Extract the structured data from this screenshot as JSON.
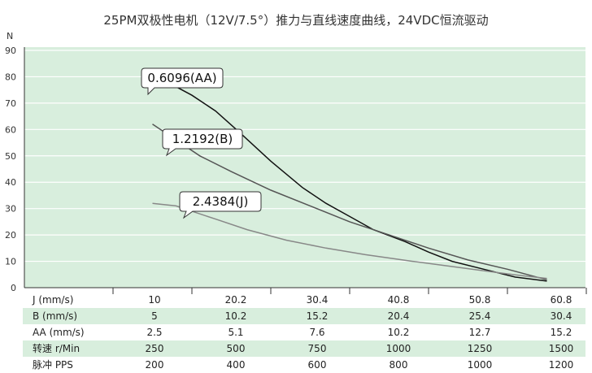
{
  "chart_data": {
    "type": "line",
    "title": "25PM双极性电机（12V/7.5°）推力与直线速度曲线，24VDC恒流驱动",
    "ylabel": "N",
    "ylim": [
      0,
      90
    ],
    "yticks": [
      0,
      10,
      20,
      30,
      40,
      50,
      60,
      70,
      80,
      90
    ],
    "x_columns": 6,
    "grid": "horizontal",
    "background": "#d8eedd",
    "series": [
      {
        "name": "0.6096(AA)",
        "color": "#111111",
        "points": [
          [
            0.5,
            81
          ],
          [
            1.0,
            73
          ],
          [
            1.3,
            67
          ],
          [
            1.6,
            59
          ],
          [
            2.0,
            48
          ],
          [
            2.4,
            38
          ],
          [
            2.7,
            32
          ],
          [
            3.0,
            27
          ],
          [
            3.3,
            22
          ],
          [
            3.7,
            17.5
          ],
          [
            4.0,
            13.5
          ],
          [
            4.3,
            10
          ],
          [
            4.7,
            7
          ],
          [
            5.1,
            4
          ],
          [
            5.5,
            2.5
          ]
        ],
        "label_at": [
          1.0,
          73
        ]
      },
      {
        "name": "1.2192(B)",
        "color": "#555555",
        "points": [
          [
            0.5,
            62
          ],
          [
            0.8,
            56
          ],
          [
            1.1,
            50
          ],
          [
            1.5,
            44
          ],
          [
            2.0,
            37
          ],
          [
            2.5,
            31
          ],
          [
            3.0,
            25
          ],
          [
            3.5,
            20
          ],
          [
            4.0,
            15
          ],
          [
            4.5,
            10.5
          ],
          [
            5.0,
            7
          ],
          [
            5.5,
            3
          ]
        ],
        "label_at": [
          1.6,
          49
        ]
      },
      {
        "name": "2.4384(J)",
        "color": "#888888",
        "points": [
          [
            0.5,
            32
          ],
          [
            0.8,
            31
          ],
          [
            1.0,
            29
          ],
          [
            1.3,
            26
          ],
          [
            1.7,
            22
          ],
          [
            2.2,
            18
          ],
          [
            2.7,
            15
          ],
          [
            3.2,
            12.5
          ],
          [
            3.8,
            10
          ],
          [
            4.3,
            8
          ],
          [
            4.8,
            6
          ],
          [
            5.2,
            4.5
          ],
          [
            5.5,
            3.5
          ]
        ],
        "label_at": [
          1.3,
          26
        ]
      }
    ],
    "table": {
      "rows": [
        {
          "label": "J (mm/s)",
          "values": [
            "10",
            "20.2",
            "30.4",
            "40.8",
            "50.8",
            "60.8"
          ],
          "shaded": false
        },
        {
          "label": "B (mm/s)",
          "values": [
            "5",
            "10.2",
            "15.2",
            "20.4",
            "25.4",
            "30.4"
          ],
          "shaded": true
        },
        {
          "label": "AA (mm/s)",
          "values": [
            "2.5",
            "5.1",
            "7.6",
            "10.2",
            "12.7",
            "15.2"
          ],
          "shaded": false
        },
        {
          "label": "转速 r/Min",
          "values": [
            "250",
            "500",
            "750",
            "1000",
            "1250",
            "1500"
          ],
          "shaded": true
        },
        {
          "label": "脉冲 PPS",
          "values": [
            "200",
            "400",
            "600",
            "800",
            "1000",
            "1200"
          ],
          "shaded": false
        }
      ]
    }
  }
}
